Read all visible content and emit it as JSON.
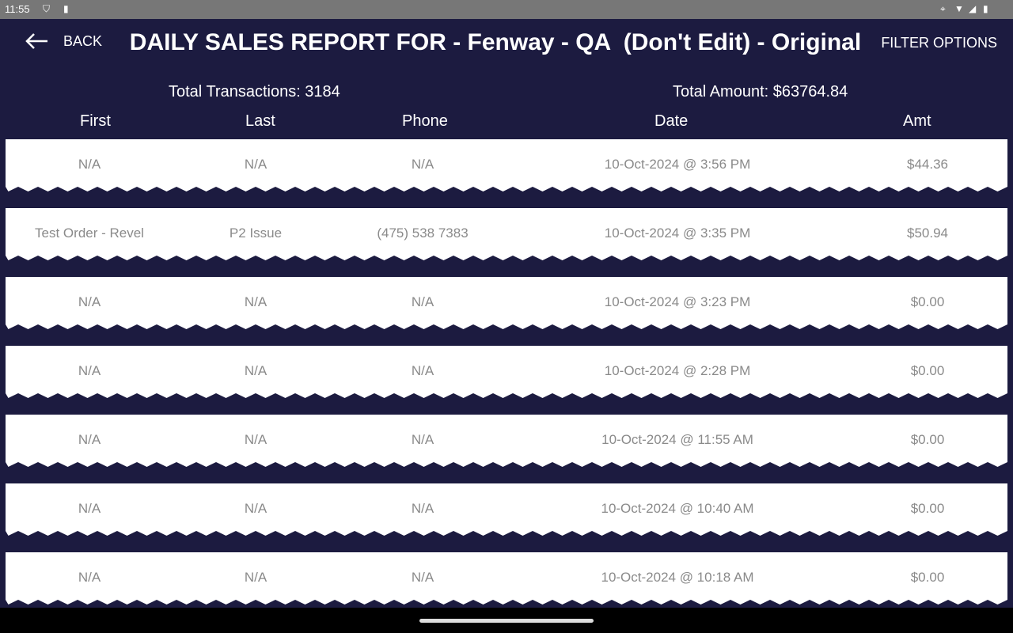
{
  "status_bar": {
    "time": "11:55"
  },
  "header": {
    "back_label": "BACK",
    "title": "DAILY SALES REPORT FOR - Fenway - QA  (Don't Edit) - Original",
    "filter_label": "FILTER OPTIONS"
  },
  "summary": {
    "transactions": "Total Transactions: 3184",
    "amount": "Total Amount: $63764.84"
  },
  "columns": [
    "First",
    "Last",
    "Phone",
    "Date",
    "Amt"
  ],
  "rows": [
    {
      "first": "N/A",
      "last": "N/A",
      "phone": "N/A",
      "date": "10-Oct-2024 @ 3:56 PM",
      "amt": "$44.36"
    },
    {
      "first": "Test Order - Revel",
      "last": "P2 Issue",
      "phone": "(475) 538 7383",
      "date": "10-Oct-2024 @ 3:35 PM",
      "amt": "$50.94"
    },
    {
      "first": "N/A",
      "last": "N/A",
      "phone": "N/A",
      "date": "10-Oct-2024 @ 3:23 PM",
      "amt": "$0.00"
    },
    {
      "first": "N/A",
      "last": "N/A",
      "phone": "N/A",
      "date": "10-Oct-2024 @ 2:28 PM",
      "amt": "$0.00"
    },
    {
      "first": "N/A",
      "last": "N/A",
      "phone": "N/A",
      "date": "10-Oct-2024 @ 11:55 AM",
      "amt": "$0.00"
    },
    {
      "first": "N/A",
      "last": "N/A",
      "phone": "N/A",
      "date": "10-Oct-2024 @ 10:40 AM",
      "amt": "$0.00"
    },
    {
      "first": "N/A",
      "last": "N/A",
      "phone": "N/A",
      "date": "10-Oct-2024 @ 10:18 AM",
      "amt": "$0.00"
    }
  ]
}
